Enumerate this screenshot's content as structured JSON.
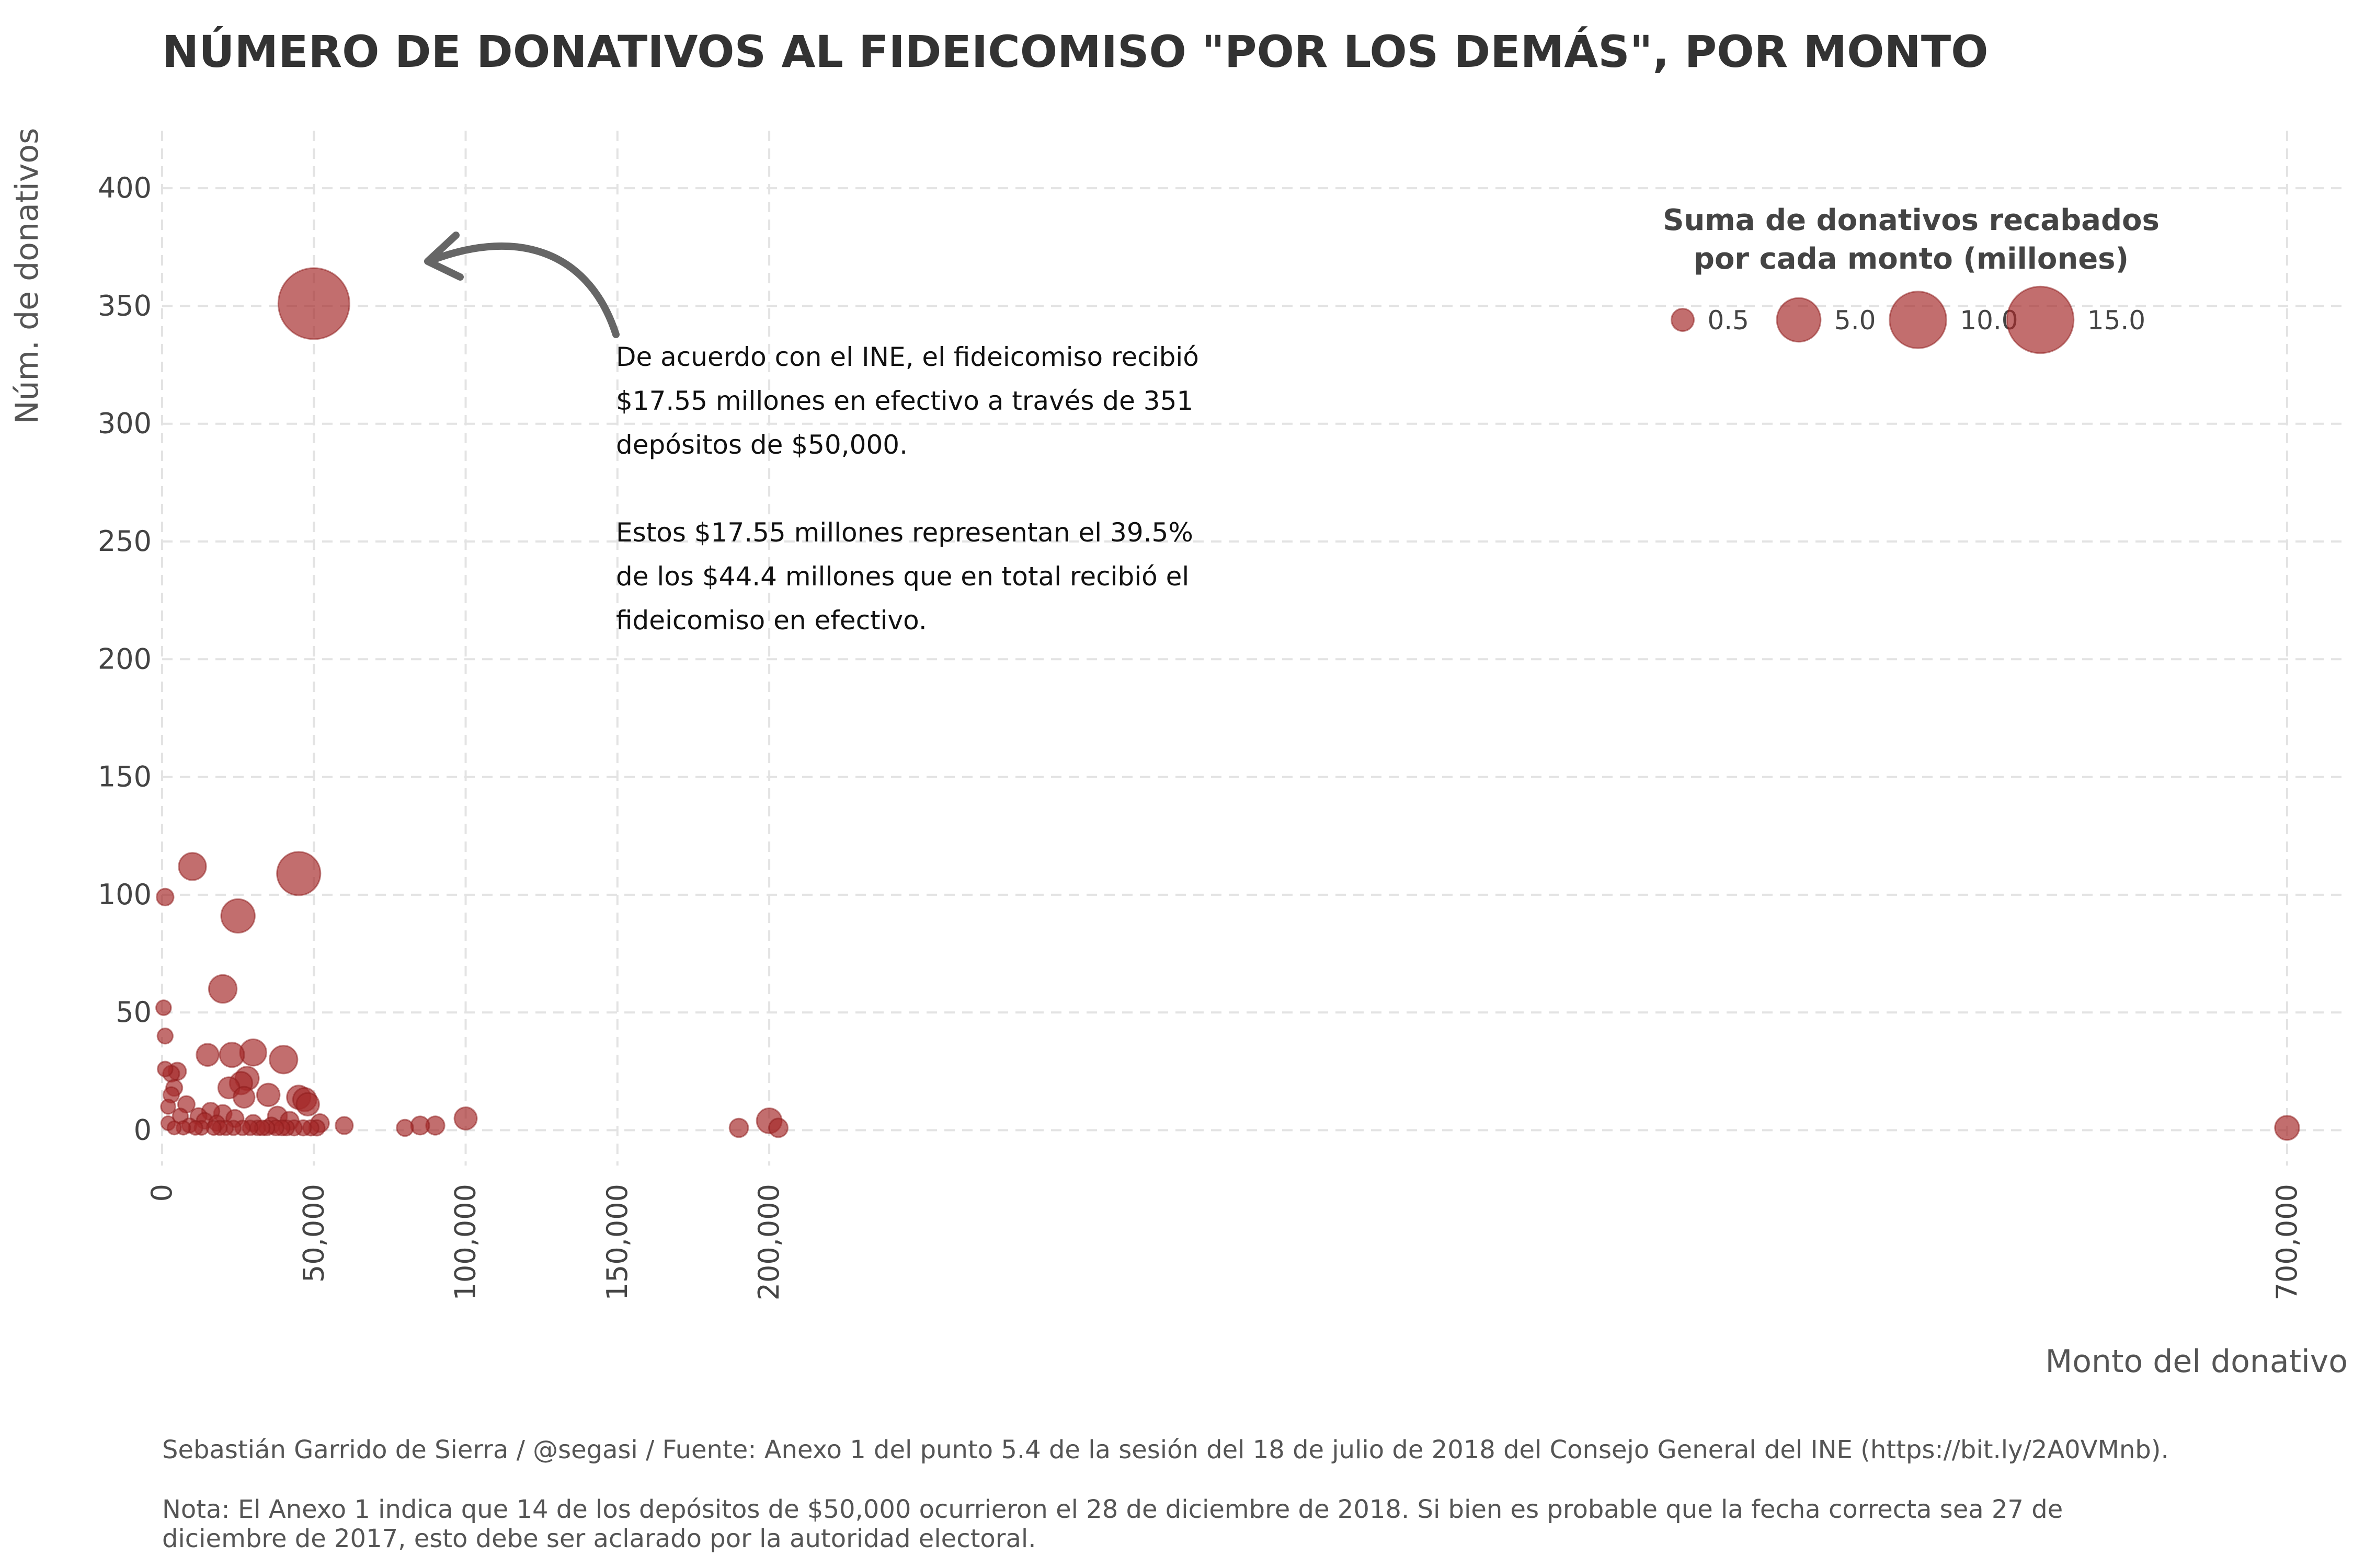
{
  "chart_data": {
    "type": "scatter",
    "title": "NÚMERO DE DONATIVOS AL FIDEICOMISO \"POR LOS DEMÁS\", POR MONTO",
    "xlabel": "Monto del donativo",
    "ylabel": "Núm. de donativos",
    "xlim": [
      0,
      720000
    ],
    "ylim": [
      -15,
      420
    ],
    "x_ticks": [
      0,
      50000,
      100000,
      150000,
      200000,
      700000
    ],
    "x_tick_labels": [
      "0",
      "50,000",
      "100,000",
      "150,000",
      "200,000",
      "700,000"
    ],
    "y_ticks": [
      0,
      50,
      100,
      150,
      200,
      250,
      300,
      350,
      400
    ],
    "y_tick_labels": [
      "0",
      "50",
      "100",
      "150",
      "200",
      "250",
      "300",
      "350",
      "400"
    ],
    "grid": true,
    "point_color": "#a52a2a",
    "size_legend": {
      "title_lines": [
        "Suma de donativos recabados",
        "por cada monto (millones)"
      ],
      "values": [
        0.5,
        5.0,
        10.0,
        15.0
      ],
      "labels": [
        "0.5",
        "5.0",
        "10.0",
        "15.0"
      ],
      "placement": "top-right"
    },
    "points": [
      {
        "x": 50000,
        "y": 351,
        "sum": 17.55
      },
      {
        "x": 45000,
        "y": 109,
        "sum": 4.9
      },
      {
        "x": 10000,
        "y": 112,
        "sum": 1.12
      },
      {
        "x": 25000,
        "y": 91,
        "sum": 2.28
      },
      {
        "x": 20000,
        "y": 60,
        "sum": 1.2
      },
      {
        "x": 1000,
        "y": 99,
        "sum": 0.1
      },
      {
        "x": 500,
        "y": 52,
        "sum": 0.03
      },
      {
        "x": 1000,
        "y": 40,
        "sum": 0.04
      },
      {
        "x": 30000,
        "y": 33,
        "sum": 0.99
      },
      {
        "x": 15000,
        "y": 32,
        "sum": 0.48
      },
      {
        "x": 23000,
        "y": 32,
        "sum": 0.74
      },
      {
        "x": 40000,
        "y": 30,
        "sum": 1.2
      },
      {
        "x": 1000,
        "y": 26,
        "sum": 0.03
      },
      {
        "x": 3000,
        "y": 24,
        "sum": 0.07
      },
      {
        "x": 5000,
        "y": 25,
        "sum": 0.13
      },
      {
        "x": 28000,
        "y": 22,
        "sum": 0.62
      },
      {
        "x": 26000,
        "y": 20,
        "sum": 0.52
      },
      {
        "x": 22000,
        "y": 18,
        "sum": 0.4
      },
      {
        "x": 4000,
        "y": 18,
        "sum": 0.07
      },
      {
        "x": 3000,
        "y": 15,
        "sum": 0.05
      },
      {
        "x": 45000,
        "y": 14,
        "sum": 0.63
      },
      {
        "x": 47000,
        "y": 13,
        "sum": 0.61
      },
      {
        "x": 35000,
        "y": 15,
        "sum": 0.53
      },
      {
        "x": 27000,
        "y": 14,
        "sum": 0.38
      },
      {
        "x": 48000,
        "y": 11,
        "sum": 0.53
      },
      {
        "x": 8000,
        "y": 11,
        "sum": 0.09
      },
      {
        "x": 2000,
        "y": 10,
        "sum": 0.02
      },
      {
        "x": 16000,
        "y": 8,
        "sum": 0.13
      },
      {
        "x": 12000,
        "y": 6,
        "sum": 0.07
      },
      {
        "x": 20000,
        "y": 7,
        "sum": 0.14
      },
      {
        "x": 6000,
        "y": 6,
        "sum": 0.04
      },
      {
        "x": 38000,
        "y": 6,
        "sum": 0.23
      },
      {
        "x": 24000,
        "y": 5,
        "sum": 0.12
      },
      {
        "x": 100000,
        "y": 5,
        "sum": 0.5
      },
      {
        "x": 200000,
        "y": 4,
        "sum": 0.8
      },
      {
        "x": 14000,
        "y": 4,
        "sum": 0.06
      },
      {
        "x": 42000,
        "y": 4,
        "sum": 0.17
      },
      {
        "x": 52000,
        "y": 3,
        "sum": 0.16
      },
      {
        "x": 85000,
        "y": 2,
        "sum": 0.17
      },
      {
        "x": 90000,
        "y": 2,
        "sum": 0.18
      },
      {
        "x": 60000,
        "y": 2,
        "sum": 0.12
      },
      {
        "x": 30000,
        "y": 3,
        "sum": 0.09
      },
      {
        "x": 36000,
        "y": 2,
        "sum": 0.07
      },
      {
        "x": 18000,
        "y": 3,
        "sum": 0.05
      },
      {
        "x": 2000,
        "y": 3,
        "sum": 0.01
      },
      {
        "x": 9000,
        "y": 2,
        "sum": 0.02
      },
      {
        "x": 33000,
        "y": 1,
        "sum": 0.03
      },
      {
        "x": 190000,
        "y": 1,
        "sum": 0.19
      },
      {
        "x": 203000,
        "y": 1,
        "sum": 0.2
      },
      {
        "x": 700000,
        "y": 1,
        "sum": 0.7
      },
      {
        "x": 80000,
        "y": 1,
        "sum": 0.08
      },
      {
        "x": 51000,
        "y": 1,
        "sum": 0.05
      },
      {
        "x": 41000,
        "y": 1,
        "sum": 0.04
      },
      {
        "x": 4000,
        "y": 1,
        "sum": 0.004
      },
      {
        "x": 7000,
        "y": 1,
        "sum": 0.007
      },
      {
        "x": 11000,
        "y": 1,
        "sum": 0.011
      },
      {
        "x": 13000,
        "y": 1,
        "sum": 0.013
      },
      {
        "x": 17000,
        "y": 1,
        "sum": 0.017
      },
      {
        "x": 19000,
        "y": 1,
        "sum": 0.019
      },
      {
        "x": 21000,
        "y": 1,
        "sum": 0.021
      },
      {
        "x": 23500,
        "y": 1,
        "sum": 0.024
      },
      {
        "x": 26500,
        "y": 1,
        "sum": 0.027
      },
      {
        "x": 29000,
        "y": 1,
        "sum": 0.029
      },
      {
        "x": 31500,
        "y": 1,
        "sum": 0.032
      },
      {
        "x": 34500,
        "y": 1,
        "sum": 0.035
      },
      {
        "x": 37500,
        "y": 1,
        "sum": 0.038
      },
      {
        "x": 39500,
        "y": 1,
        "sum": 0.04
      },
      {
        "x": 43500,
        "y": 1,
        "sum": 0.044
      },
      {
        "x": 46500,
        "y": 1,
        "sum": 0.047
      },
      {
        "x": 49000,
        "y": 1,
        "sum": 0.049
      }
    ]
  },
  "annotation": {
    "lines": [
      "De acuerdo con el INE, el fideicomiso recibió",
      "$17.55 millones en efectivo a través de 351",
      "depósitos de $50,000.",
      "",
      "Estos $17.55 millones representan el 39.5%",
      "de los $44.4 millones que en total recibió el",
      "fideicomiso en efectivo."
    ]
  },
  "caption": {
    "source": "Sebastián Garrido de Sierra / @segasi / Fuente: Anexo 1 del punto 5.4 de la sesión del 18 de julio de 2018 del Consejo General del INE (https://bit.ly/2A0VMnb).",
    "note_lines": [
      "Nota: El Anexo 1 indica que 14 de los depósitos de $50,000 ocurrieron el 28 de diciembre de 2018. Si bien es probable que la fecha correcta sea 27 de",
      "diciembre de 2017, esto debe ser aclarado por la autoridad electoral."
    ]
  }
}
